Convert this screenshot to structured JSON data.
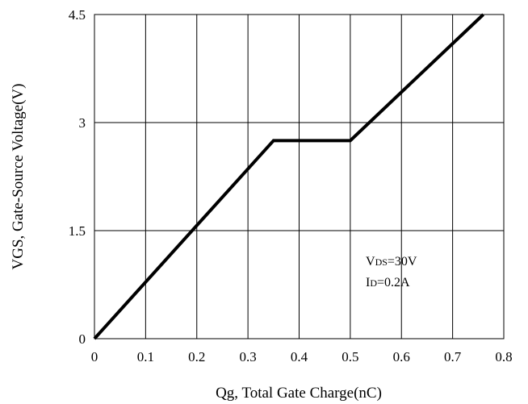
{
  "chart_data": {
    "type": "line",
    "xlabel": "Qg, Total Gate Charge(nC)",
    "ylabel": "VGS, Gate-Source Voltage(V)",
    "xlim": [
      0,
      0.8
    ],
    "ylim": [
      0,
      4.5
    ],
    "x_ticks": [
      "0",
      "0.1",
      "0.2",
      "0.3",
      "0.4",
      "0.5",
      "0.6",
      "0.7",
      "0.8"
    ],
    "y_ticks": [
      "0",
      "1.5",
      "3",
      "4.5"
    ],
    "x_grid": [
      0,
      0.1,
      0.2,
      0.3,
      0.4,
      0.5,
      0.6,
      0.7,
      0.8
    ],
    "y_grid": [
      0,
      1.5,
      3,
      4.5
    ],
    "grid": true,
    "series": [
      {
        "x": [
          0,
          0.35,
          0.5,
          0.76
        ],
        "y": [
          0,
          2.75,
          2.75,
          4.5
        ]
      }
    ],
    "annotations": [
      {
        "main": "V",
        "sub": "DS",
        "rest": "=30V"
      },
      {
        "main": "I",
        "sub": "D",
        "rest": "=0.2A"
      }
    ]
  }
}
